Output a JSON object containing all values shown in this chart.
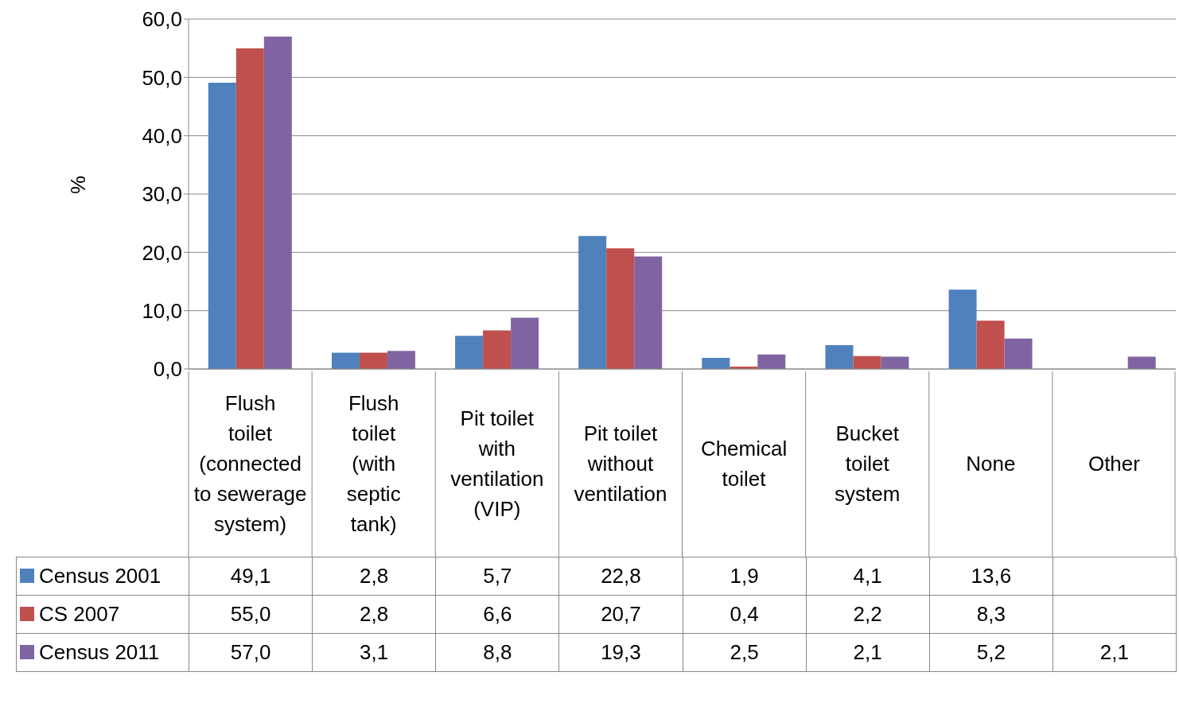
{
  "chart_data": {
    "type": "bar",
    "ylabel": "%",
    "categories": [
      "Flush toilet (connected to sewerage system)",
      "Flush toilet (with septic tank)",
      "Pit toilet with ventilation (VIP)",
      "Pit toilet without ventilation",
      "Chemical toilet",
      "Bucket toilet system",
      "None",
      "Other"
    ],
    "series": [
      {
        "name": "Census 2001",
        "color": "#4f81bd",
        "values": [
          49.1,
          2.8,
          5.7,
          22.8,
          1.9,
          4.1,
          13.6,
          null
        ],
        "value_labels": [
          "49,1",
          "2,8",
          "5,7",
          "22,8",
          "1,9",
          "4,1",
          "13,6",
          null
        ]
      },
      {
        "name": "CS 2007",
        "color": "#c0504d",
        "values": [
          55.0,
          2.8,
          6.6,
          20.7,
          0.4,
          2.2,
          8.3,
          null
        ],
        "value_labels": [
          "55,0",
          "2,8",
          "6,6",
          "20,7",
          "0,4",
          "2,2",
          "8,3",
          null
        ]
      },
      {
        "name": "Census 2011",
        "color": "#8064a2",
        "values": [
          57.0,
          3.1,
          8.8,
          19.3,
          2.5,
          2.1,
          5.2,
          2.1
        ],
        "value_labels": [
          "57,0",
          "3,1",
          "8,8",
          "19,3",
          "2,5",
          "2,1",
          "5,2",
          "2,1"
        ]
      }
    ],
    "ylim": [
      0,
      60
    ],
    "yticks": [
      {
        "value": 0,
        "label": "0,0"
      },
      {
        "value": 10,
        "label": "10,0"
      },
      {
        "value": 20,
        "label": "20,0"
      },
      {
        "value": 30,
        "label": "30,0"
      },
      {
        "value": 40,
        "label": "40,0"
      },
      {
        "value": 50,
        "label": "50,0"
      },
      {
        "value": 60,
        "label": "60,0"
      }
    ],
    "grid": "y",
    "legend": "bottom"
  }
}
